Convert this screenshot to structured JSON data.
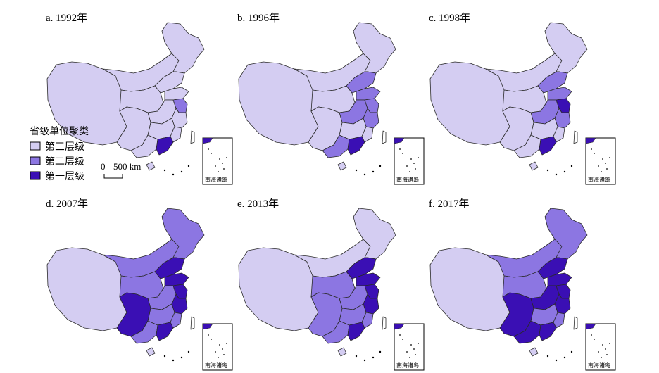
{
  "colors": {
    "level3": "#d4cdf2",
    "level2": "#8c76e2",
    "level1": "#3a0fb4",
    "border": "#2a2a2a"
  },
  "panels": [
    {
      "title": "a. 1992年",
      "regions": {
        "ne": "l3",
        "inner": "l3",
        "west": "l3",
        "north": "l3",
        "bj": "l3",
        "shandong": "l3",
        "central": "l3",
        "jsu": "l2",
        "zj": "l3",
        "east": "l3",
        "sw": "l3",
        "south": "l3",
        "gd": "l1",
        "fj": "l3"
      }
    },
    {
      "title": "b. 1996年",
      "regions": {
        "ne": "l3",
        "inner": "l3",
        "west": "l3",
        "north": "l3",
        "bj": "l2",
        "shandong": "l2",
        "central": "l2",
        "jsu": "l2",
        "zj": "l2",
        "east": "l3",
        "sw": "l3",
        "south": "l2",
        "gd": "l1",
        "fj": "l3"
      }
    },
    {
      "title": "c. 1998年",
      "regions": {
        "ne": "l3",
        "inner": "l3",
        "west": "l3",
        "north": "l3",
        "bj": "l2",
        "shandong": "l2",
        "central": "l2",
        "jsu": "l1",
        "zj": "l2",
        "east": "l3",
        "sw": "l3",
        "south": "l3",
        "gd": "l1",
        "fj": "l3"
      }
    },
    {
      "title": "d. 2007年",
      "regions": {
        "ne": "l2",
        "inner": "l2",
        "west": "l3",
        "north": "l2",
        "bj": "l1",
        "shandong": "l1",
        "central": "l2",
        "jsu": "l1",
        "zj": "l1",
        "east": "l2",
        "sw": "l1",
        "south": "l2",
        "gd": "l1",
        "fj": "l2"
      }
    },
    {
      "title": "e. 2013年",
      "regions": {
        "ne": "l3",
        "inner": "l3",
        "west": "l3",
        "north": "l2",
        "bj": "l1",
        "shandong": "l1",
        "central": "l2",
        "jsu": "l1",
        "zj": "l1",
        "east": "l2",
        "sw": "l2",
        "south": "l2",
        "gd": "l1",
        "fj": "l2"
      }
    },
    {
      "title": "f. 2017年",
      "regions": {
        "ne": "l2",
        "inner": "l2",
        "west": "l3",
        "north": "l2",
        "bj": "l1",
        "shandong": "l1",
        "central": "l1",
        "jsu": "l1",
        "zj": "l1",
        "east": "l2",
        "sw": "l1",
        "south": "l1",
        "gd": "l1",
        "fj": "l2"
      }
    }
  ],
  "legend": {
    "title": "省级单位聚类",
    "items": [
      {
        "key": "l3",
        "label": "第三层级"
      },
      {
        "key": "l2",
        "label": "第二层级"
      },
      {
        "key": "l1",
        "label": "第一层级"
      }
    ]
  },
  "scale_bar": {
    "zero": "0",
    "label": "500 km"
  },
  "inset_label": "南海诸岛"
}
